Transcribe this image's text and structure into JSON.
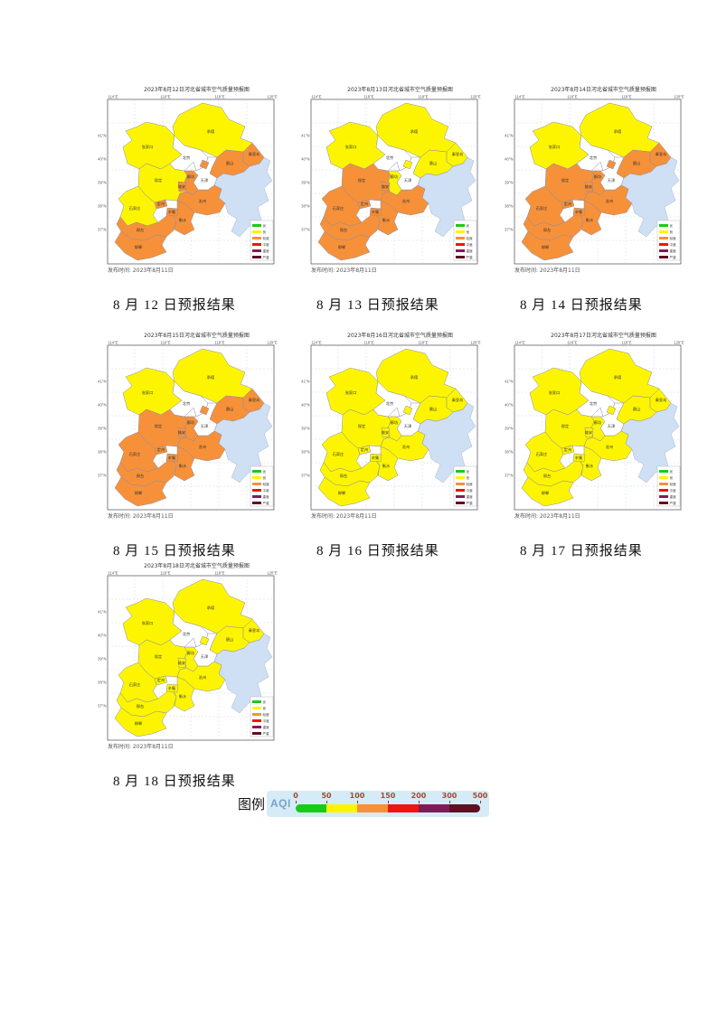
{
  "cities": {
    "zhangjiakou": "张家口",
    "chengde": "承德",
    "beijing": "北京",
    "tianjin": "天津",
    "tangshan": "唐山",
    "qinhuangdao": "秦皇岛",
    "langfang": "廊坊",
    "baoding": "保定",
    "xiongan": "雄安",
    "dingzhou": "定州",
    "shijiazhuang": "石家庄",
    "xinji": "辛集",
    "cangzhou": "沧州",
    "hengshui": "衡水",
    "xingtai": "邢台",
    "handan": "邯郸"
  },
  "map_common": {
    "issue_text": "发布时间: 2023年8月11日",
    "x_ticks": [
      "114°E",
      "116°E",
      "118°E",
      "120°E"
    ],
    "y_ticks": [
      "41°N",
      "40°N",
      "39°N",
      "38°N",
      "37°N"
    ],
    "level_colors": {
      "good": "#fdf500",
      "light": "#f6913a",
      "none": "#ffffff"
    },
    "sea_color": "#cfdff4",
    "inmap_legend": [
      {
        "label": "优",
        "color": "#18cb18"
      },
      {
        "label": "良",
        "color": "#fdf500"
      },
      {
        "label": "轻度",
        "color": "#f6913a"
      },
      {
        "label": "中度",
        "color": "#ee1414"
      },
      {
        "label": "重度",
        "color": "#7d1d58"
      },
      {
        "label": "严重",
        "color": "#5e1022"
      }
    ]
  },
  "maps": [
    {
      "title": "2023年8月12日河北省城市空气质量预报图",
      "caption": "8 月 12 日预报结果",
      "levels": {
        "zhangjiakou": "good",
        "chengde": "good",
        "beijing": "none",
        "tianjin": "none",
        "tangshan": "light",
        "qinhuangdao": "light",
        "langfang": "light",
        "baoding": "good",
        "xiongan": "light",
        "dingzhou": "light",
        "shijiazhuang": "good",
        "xinji": "light",
        "cangzhou": "light",
        "hengshui": "light",
        "xingtai": "light",
        "handan": "light"
      }
    },
    {
      "title": "2023年8月13日河北省城市空气质量预报图",
      "caption": "8 月 13 日预报结果",
      "levels": {
        "zhangjiakou": "good",
        "chengde": "good",
        "beijing": "none",
        "tianjin": "none",
        "tangshan": "good",
        "qinhuangdao": "good",
        "langfang": "good",
        "baoding": "light",
        "xiongan": "light",
        "dingzhou": "light",
        "shijiazhuang": "light",
        "xinji": "light",
        "cangzhou": "light",
        "hengshui": "light",
        "xingtai": "light",
        "handan": "light"
      }
    },
    {
      "title": "2023年8月14日河北省城市空气质量预报图",
      "caption": "8 月 14 日预报结果",
      "levels": {
        "zhangjiakou": "good",
        "chengde": "good",
        "beijing": "none",
        "tianjin": "none",
        "tangshan": "light",
        "qinhuangdao": "light",
        "langfang": "light",
        "baoding": "light",
        "xiongan": "light",
        "dingzhou": "light",
        "shijiazhuang": "light",
        "xinji": "light",
        "cangzhou": "light",
        "hengshui": "light",
        "xingtai": "light",
        "handan": "light"
      }
    },
    {
      "title": "2023年8月15日河北省城市空气质量预报图",
      "caption": "8 月 15 日预报结果",
      "levels": {
        "zhangjiakou": "good",
        "chengde": "good",
        "beijing": "none",
        "tianjin": "none",
        "tangshan": "light",
        "qinhuangdao": "light",
        "langfang": "light",
        "baoding": "light",
        "xiongan": "light",
        "dingzhou": "light",
        "shijiazhuang": "light",
        "xinji": "light",
        "cangzhou": "light",
        "hengshui": "light",
        "xingtai": "light",
        "handan": "light"
      }
    },
    {
      "title": "2023年8月16日河北省城市空气质量预报图",
      "caption": "8 月 16 日预报结果",
      "levels": {
        "zhangjiakou": "good",
        "chengde": "good",
        "beijing": "none",
        "tianjin": "none",
        "tangshan": "good",
        "qinhuangdao": "good",
        "langfang": "good",
        "baoding": "good",
        "xiongan": "good",
        "dingzhou": "good",
        "shijiazhuang": "good",
        "xinji": "good",
        "cangzhou": "good",
        "hengshui": "good",
        "xingtai": "good",
        "handan": "good"
      }
    },
    {
      "title": "2023年8月17日河北省城市空气质量预报图",
      "caption": "8 月 17 日预报结果",
      "levels": {
        "zhangjiakou": "good",
        "chengde": "good",
        "beijing": "none",
        "tianjin": "none",
        "tangshan": "good",
        "qinhuangdao": "good",
        "langfang": "good",
        "baoding": "good",
        "xiongan": "good",
        "dingzhou": "good",
        "shijiazhuang": "good",
        "xinji": "good",
        "cangzhou": "good",
        "hengshui": "good",
        "xingtai": "good",
        "handan": "good"
      }
    },
    {
      "title": "2023年8月18日河北省城市空气质量预报图",
      "caption": "8 月 18 日预报结果",
      "levels": {
        "zhangjiakou": "good",
        "chengde": "good",
        "beijing": "none",
        "tianjin": "none",
        "tangshan": "good",
        "qinhuangdao": "good",
        "langfang": "good",
        "baoding": "good",
        "xiongan": "good",
        "dingzhou": "good",
        "shijiazhuang": "good",
        "xinji": "good",
        "cangzhou": "good",
        "hengshui": "good",
        "xingtai": "good",
        "handan": "good"
      }
    }
  ],
  "legend": {
    "label": "图例",
    "aqi_label": "AQI",
    "ticks": [
      "0",
      "50",
      "100",
      "150",
      "200",
      "300",
      "500"
    ],
    "segment_colors": [
      "#18cb18",
      "#fdf500",
      "#f6913a",
      "#ee1414",
      "#7d1d58",
      "#5e1022"
    ],
    "box_bg": "#d6ebf8",
    "number_color": "#a04a30",
    "aqi_color": "#7aa3c9"
  }
}
